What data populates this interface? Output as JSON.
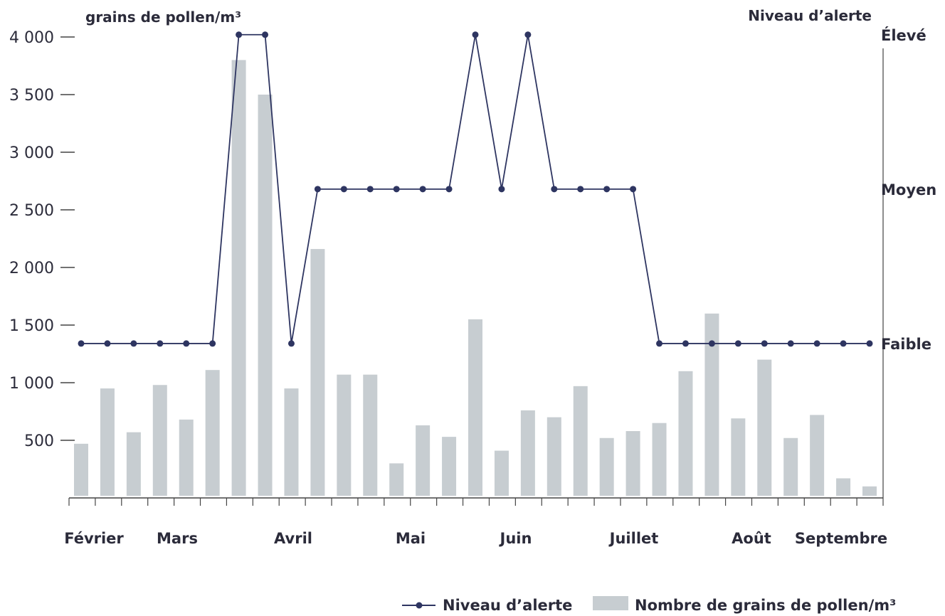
{
  "chart_data": {
    "type": "bar",
    "y_axis_title": "grains de pollen/m³",
    "right_axis_title": "Niveau d’alerte",
    "ylim": [
      0,
      4000
    ],
    "y_ticks": [
      {
        "value": 500,
        "label": "500"
      },
      {
        "value": 1000,
        "label": "1 000"
      },
      {
        "value": 1500,
        "label": "1 500"
      },
      {
        "value": 2000,
        "label": "2 000"
      },
      {
        "value": 2500,
        "label": "2 500"
      },
      {
        "value": 3000,
        "label": "3 000"
      },
      {
        "value": 3500,
        "label": "3 500"
      },
      {
        "value": 4000,
        "label": "4 000"
      }
    ],
    "alert_levels": [
      {
        "name": "Faible",
        "value": 1340
      },
      {
        "name": "Moyen",
        "value": 2680
      },
      {
        "name": "Élevé",
        "value": 4020
      }
    ],
    "months": [
      "Février",
      "Mars",
      "Avril",
      "Mai",
      "Juin",
      "Juillet",
      "Août",
      "Septembre"
    ],
    "bars_name": "Nombre de grains de pollen/m³",
    "bars": [
      470,
      950,
      570,
      980,
      680,
      1110,
      3800,
      3500,
      950,
      2160,
      1070,
      1070,
      300,
      630,
      530,
      1550,
      410,
      760,
      700,
      970,
      520,
      580,
      650,
      1100,
      1600,
      690,
      1200,
      520,
      720,
      170,
      100
    ],
    "line_name": "Niveau d’alerte",
    "alert_series": [
      "Faible",
      "Faible",
      "Faible",
      "Faible",
      "Faible",
      "Faible",
      "Élevé",
      "Élevé",
      "Faible",
      "Moyen",
      "Moyen",
      "Moyen",
      "Moyen",
      "Moyen",
      "Moyen",
      "Élevé",
      "Moyen",
      "Élevé",
      "Moyen",
      "Moyen",
      "Moyen",
      "Moyen",
      "Faible",
      "Faible",
      "Faible",
      "Faible",
      "Faible",
      "Faible",
      "Faible",
      "Faible",
      "Faible"
    ],
    "colors": {
      "bars": "#c7cdd1",
      "line": "#2e3561",
      "axis": "#444444",
      "text": "#2b2b3a"
    },
    "legend_position": "bottom-right",
    "grid": false
  }
}
